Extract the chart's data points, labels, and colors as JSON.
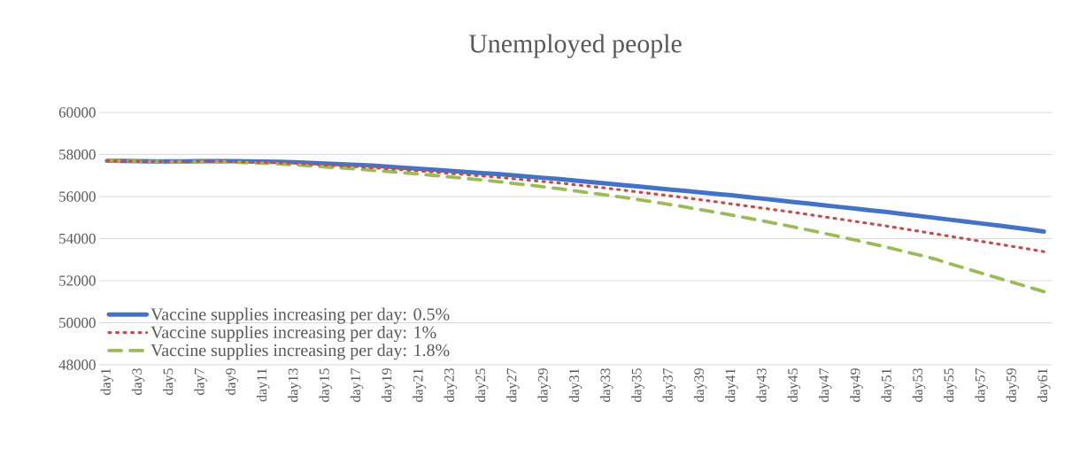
{
  "chart_data": {
    "type": "line",
    "title": "Unemployed people",
    "categories": [
      "day1",
      null,
      "day3",
      null,
      "day5",
      null,
      "day7",
      null,
      "day9",
      null,
      "day11",
      null,
      "day13",
      null,
      "day15",
      null,
      "day17",
      null,
      "day19",
      null,
      "day21",
      null,
      "day23",
      null,
      "day25",
      null,
      "day27",
      null,
      "day29",
      null,
      "day31",
      null,
      "day33",
      null,
      "day35",
      null,
      "day37",
      null,
      "day39",
      null,
      "day41",
      null,
      "day43",
      null,
      "day45",
      null,
      "day47",
      null,
      "day49",
      null,
      "day51",
      null,
      "day53",
      null,
      "day55",
      null,
      "day57",
      null,
      "day59",
      null,
      "day61"
    ],
    "series": [
      {
        "name": "Vaccine supplies increasing per day: 0.5%",
        "color": "#4472c4",
        "line_style": "solid",
        "values": [
          57700,
          57690,
          57680,
          57670,
          57670,
          57670,
          57680,
          57680,
          57680,
          57670,
          57660,
          57650,
          57630,
          57600,
          57570,
          57540,
          57510,
          57470,
          57420,
          57370,
          57320,
          57270,
          57220,
          57170,
          57120,
          57070,
          57010,
          56950,
          56890,
          56830,
          56760,
          56690,
          56620,
          56550,
          56480,
          56410,
          56340,
          56270,
          56200,
          56130,
          56060,
          55980,
          55900,
          55820,
          55740,
          55660,
          55580,
          55500,
          55420,
          55340,
          55260,
          55170,
          55080,
          54990,
          54900,
          54810,
          54720,
          54630,
          54540,
          54440,
          54340
        ]
      },
      {
        "name": "Vaccine supplies increasing per day: 1%",
        "color": "#c0504d",
        "line_style": "dotted",
        "values": [
          57700,
          57690,
          57680,
          57670,
          57670,
          57670,
          57680,
          57680,
          57670,
          57650,
          57630,
          57610,
          57580,
          57540,
          57500,
          57460,
          57420,
          57370,
          57320,
          57270,
          57220,
          57160,
          57100,
          57040,
          56980,
          56920,
          56850,
          56780,
          56710,
          56640,
          56560,
          56480,
          56400,
          56310,
          56220,
          56130,
          56040,
          55950,
          55850,
          55750,
          55650,
          55550,
          55450,
          55350,
          55250,
          55140,
          55030,
          54920,
          54810,
          54700,
          54590,
          54470,
          54350,
          54230,
          54110,
          53990,
          53870,
          53750,
          53630,
          53510,
          53380
        ]
      },
      {
        "name": "Vaccine supplies increasing per day: 1.8%",
        "color": "#9bbb59",
        "line_style": "dashed",
        "values": [
          57700,
          57690,
          57680,
          57670,
          57660,
          57660,
          57660,
          57660,
          57640,
          57610,
          57580,
          57550,
          57510,
          57460,
          57410,
          57360,
          57310,
          57250,
          57190,
          57130,
          57070,
          57000,
          56930,
          56860,
          56790,
          56710,
          56630,
          56550,
          56460,
          56370,
          56270,
          56170,
          56070,
          55970,
          55860,
          55750,
          55630,
          55510,
          55380,
          55250,
          55120,
          54980,
          54840,
          54700,
          54550,
          54400,
          54240,
          54080,
          53920,
          53750,
          53580,
          53400,
          53220,
          53040,
          52800,
          52580,
          52360,
          52140,
          51920,
          51700,
          51480
        ]
      }
    ],
    "ylim": [
      48000,
      60000
    ],
    "yticks": [
      48000,
      50000,
      52000,
      54000,
      56000,
      58000,
      60000
    ],
    "grid": "y",
    "legend": "bottom left",
    "marker": "none"
  }
}
